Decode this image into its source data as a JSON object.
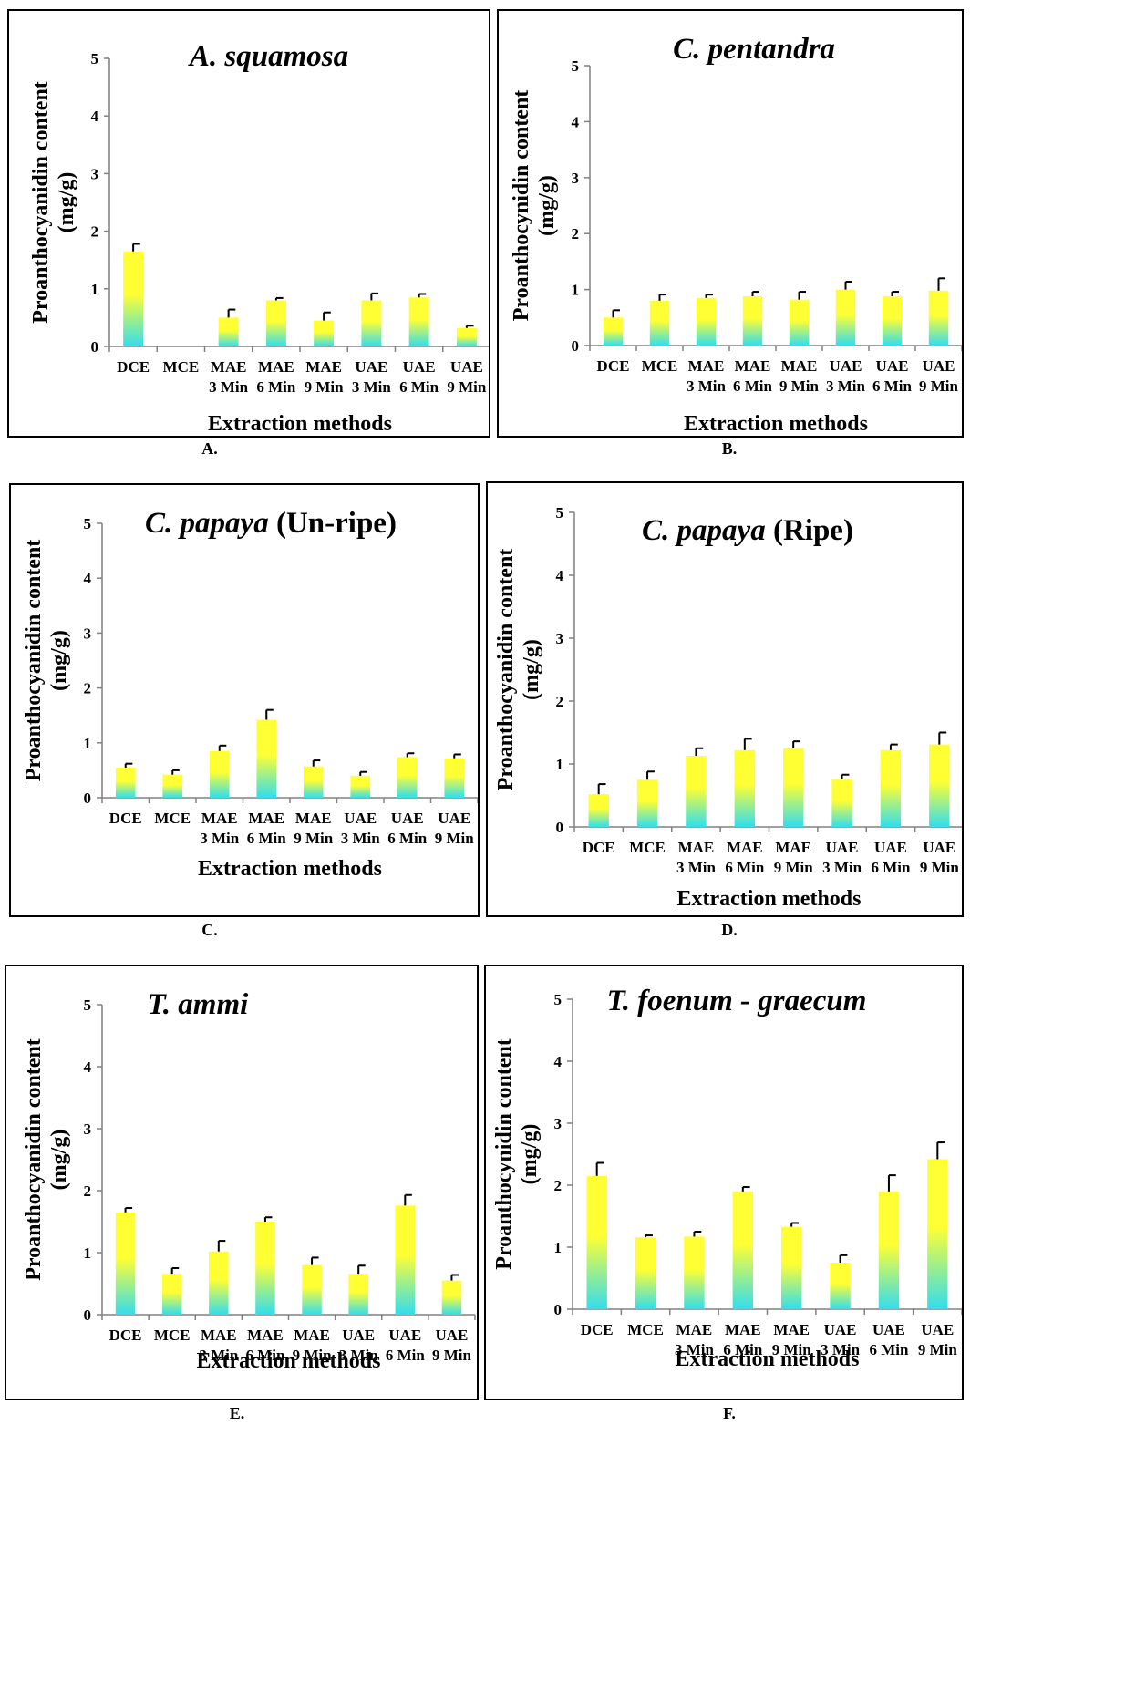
{
  "colors": {
    "bar_top": "#ffff33",
    "bar_bottom": "#33ddee",
    "axis": "#808080",
    "text": "#000000"
  },
  "chart_data": [
    {
      "type": "bar",
      "panel_label": "A.",
      "title_italic": "A. squamosa",
      "title_plain": "",
      "ylabel_line1": "Proanthocyanidin  content",
      "ylabel_line2": "(mg/g)",
      "xlabel": "Extraction methods",
      "ylim": [
        0,
        5
      ],
      "yticks": [
        "0",
        "1",
        "2",
        "3",
        "4",
        "5"
      ],
      "categories": [
        [
          "DCE",
          ""
        ],
        [
          "MCE",
          ""
        ],
        [
          "MAE",
          "3 Min"
        ],
        [
          "MAE",
          "6 Min"
        ],
        [
          "MAE",
          "9 Min"
        ],
        [
          "UAE",
          "3 Min"
        ],
        [
          "UAE",
          "6 Min"
        ],
        [
          "UAE",
          "9 Min"
        ]
      ],
      "values": [
        1.65,
        0,
        0.5,
        0.8,
        0.45,
        0.8,
        0.85,
        0.32
      ],
      "errors": [
        0.13,
        0,
        0.14,
        0.04,
        0.14,
        0.12,
        0.06,
        0.04
      ]
    },
    {
      "type": "bar",
      "panel_label": "B.",
      "title_italic": "C. pentandra",
      "title_plain": "",
      "ylabel_line1": "Proanthocynidin  content",
      "ylabel_line2": "(mg/g)",
      "xlabel": "Extraction methods",
      "ylim": [
        0,
        5
      ],
      "yticks": [
        "0",
        "1",
        "2",
        "3",
        "4",
        "5"
      ],
      "categories": [
        [
          "DCE",
          ""
        ],
        [
          "MCE",
          ""
        ],
        [
          "MAE",
          "3 Min"
        ],
        [
          "MAE",
          "6 Min"
        ],
        [
          "MAE",
          "9 Min"
        ],
        [
          "UAE",
          "3 Min"
        ],
        [
          "UAE",
          "6 Min"
        ],
        [
          "UAE",
          "9 Min"
        ]
      ],
      "values": [
        0.5,
        0.8,
        0.85,
        0.88,
        0.82,
        1.0,
        0.88,
        0.98
      ],
      "errors": [
        0.13,
        0.11,
        0.06,
        0.08,
        0.14,
        0.14,
        0.08,
        0.22
      ]
    },
    {
      "type": "bar",
      "panel_label": "C.",
      "title_italic": "C. papaya",
      "title_plain": " (Un-ripe)",
      "ylabel_line1": "Proanthocyanidin  content",
      "ylabel_line2": "(mg/g)",
      "xlabel": "Extraction methods",
      "ylim": [
        0,
        5
      ],
      "yticks": [
        "0",
        "1",
        "2",
        "3",
        "4",
        "5"
      ],
      "categories": [
        [
          "DCE",
          ""
        ],
        [
          "MCE",
          ""
        ],
        [
          "MAE",
          "3 Min"
        ],
        [
          "MAE",
          "6 Min"
        ],
        [
          "MAE",
          "9 Min"
        ],
        [
          "UAE",
          "3 Min"
        ],
        [
          "UAE",
          "6 Min"
        ],
        [
          "UAE",
          "9 Min"
        ]
      ],
      "values": [
        0.55,
        0.42,
        0.85,
        1.42,
        0.57,
        0.4,
        0.74,
        0.72
      ],
      "errors": [
        0.07,
        0.08,
        0.1,
        0.18,
        0.11,
        0.07,
        0.07,
        0.07
      ]
    },
    {
      "type": "bar",
      "panel_label": "D.",
      "title_italic": "C. papaya",
      "title_plain": " (Ripe)",
      "ylabel_line1": "Proanthocyanidin  content",
      "ylabel_line2": "(mg/g)",
      "xlabel": "Extraction methods",
      "ylim": [
        0,
        5
      ],
      "yticks": [
        "0",
        "1",
        "2",
        "3",
        "4",
        "5"
      ],
      "categories": [
        [
          "DCE",
          ""
        ],
        [
          "MCE",
          ""
        ],
        [
          "MAE",
          "3 Min"
        ],
        [
          "MAE",
          "6 Min"
        ],
        [
          "MAE",
          "9 Min"
        ],
        [
          "UAE",
          "3 Min"
        ],
        [
          "UAE",
          "6 Min"
        ],
        [
          "UAE",
          "9 Min"
        ]
      ],
      "values": [
        0.52,
        0.75,
        1.13,
        1.22,
        1.25,
        0.76,
        1.22,
        1.31
      ],
      "errors": [
        0.16,
        0.13,
        0.12,
        0.18,
        0.11,
        0.07,
        0.09,
        0.19
      ]
    },
    {
      "type": "bar",
      "panel_label": "E.",
      "title_italic": "T. ammi",
      "title_plain": "",
      "ylabel_line1": "Proanthocyanidin  content",
      "ylabel_line2": "(mg/g)",
      "xlabel": "Extraction methods",
      "ylim": [
        0,
        5
      ],
      "yticks": [
        "0",
        "1",
        "2",
        "3",
        "4",
        "5"
      ],
      "categories": [
        [
          "DCE",
          ""
        ],
        [
          "MCE",
          ""
        ],
        [
          "MAE",
          "3 Min"
        ],
        [
          "MAE",
          "6 Min"
        ],
        [
          "MAE",
          "9 Min"
        ],
        [
          "UAE",
          "3 Min"
        ],
        [
          "UAE",
          "6 Min"
        ],
        [
          "UAE",
          "9 Min"
        ]
      ],
      "values": [
        1.65,
        0.66,
        1.02,
        1.5,
        0.8,
        0.66,
        1.76,
        0.55
      ],
      "errors": [
        0.07,
        0.09,
        0.17,
        0.07,
        0.12,
        0.13,
        0.17,
        0.09
      ]
    },
    {
      "type": "bar",
      "panel_label": "F.",
      "title_italic": "T. foenum - graecum",
      "title_plain": "",
      "ylabel_line1": "Proanthocynidin  content",
      "ylabel_line2": "(mg/g)",
      "xlabel": "Extraction methods",
      "ylim": [
        0,
        5
      ],
      "yticks": [
        "0",
        "1",
        "2",
        "3",
        "4",
        "5"
      ],
      "categories": [
        [
          "DCE",
          ""
        ],
        [
          "MCE",
          ""
        ],
        [
          "MAE",
          "3 Min"
        ],
        [
          "MAE",
          "6 Min"
        ],
        [
          "MAE",
          "9 Min"
        ],
        [
          "UAE",
          "3 Min"
        ],
        [
          "UAE",
          "6 Min"
        ],
        [
          "UAE",
          "9 Min"
        ]
      ],
      "values": [
        2.15,
        1.16,
        1.17,
        1.9,
        1.33,
        0.75,
        1.9,
        2.42
      ],
      "errors": [
        0.21,
        0.03,
        0.08,
        0.07,
        0.06,
        0.12,
        0.26,
        0.27
      ]
    }
  ]
}
